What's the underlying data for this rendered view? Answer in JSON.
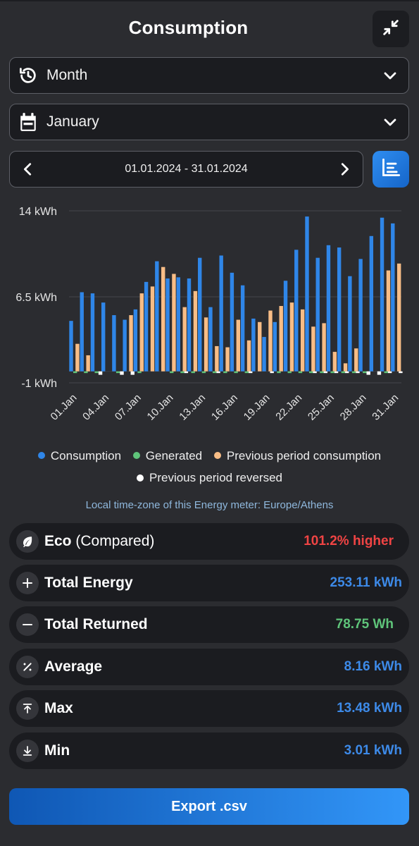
{
  "header": {
    "title": "Consumption"
  },
  "period_select": {
    "value": "Month"
  },
  "month_select": {
    "value": "January"
  },
  "date_range": {
    "text": "01.01.2024 - 31.01.2024"
  },
  "legend": {
    "consumption": "Consumption",
    "generated": "Generated",
    "previous": "Previous period consumption",
    "reversed": "Previous period reversed"
  },
  "timezone_note": "Local time-zone of this Energy meter: Europe/Athens",
  "stats": {
    "eco": {
      "label": "Eco",
      "sub": "(Compared)",
      "value": "101.2% higher",
      "color": "#f04444"
    },
    "total_energy": {
      "label": "Total Energy",
      "value": "253.11 kWh",
      "color": "#3d8ae8"
    },
    "total_returned": {
      "label": "Total Returned",
      "value": "78.75 Wh",
      "color": "#5fc47a"
    },
    "average": {
      "label": "Average",
      "value": "8.16 kWh",
      "color": "#3d8ae8"
    },
    "max": {
      "label": "Max",
      "value": "13.48 kWh",
      "color": "#3d8ae8"
    },
    "min": {
      "label": "Min",
      "value": "3.01 kWh",
      "color": "#3d8ae8"
    }
  },
  "export_label": "Export .csv",
  "colors": {
    "consumption": "#2f86e8",
    "generated": "#5fc47a",
    "previous": "#f8bd86",
    "reversed": "#ffffff"
  },
  "chart_data": {
    "type": "bar",
    "ylabel": "",
    "ylim": [
      -1,
      14
    ],
    "yticks": [
      "14 kWh",
      "6.5 kWh",
      "-1 kWh"
    ],
    "ytick_values": [
      14,
      6.5,
      -1
    ],
    "grid": true,
    "legend_position": "bottom",
    "categories": [
      "01.Jan",
      "02.Jan",
      "03.Jan",
      "04.Jan",
      "05.Jan",
      "06.Jan",
      "07.Jan",
      "08.Jan",
      "09.Jan",
      "10.Jan",
      "11.Jan",
      "12.Jan",
      "13.Jan",
      "14.Jan",
      "15.Jan",
      "16.Jan",
      "17.Jan",
      "18.Jan",
      "19.Jan",
      "20.Jan",
      "21.Jan",
      "22.Jan",
      "23.Jan",
      "24.Jan",
      "25.Jan",
      "26.Jan",
      "27.Jan",
      "28.Jan",
      "29.Jan",
      "30.Jan",
      "31.Jan"
    ],
    "tick_labels": [
      "01.Jan",
      "04.Jan",
      "07.Jan",
      "10.Jan",
      "13.Jan",
      "16.Jan",
      "19.Jan",
      "22.Jan",
      "25.Jan",
      "28.Jan",
      "31.Jan"
    ],
    "tick_indices": [
      0,
      3,
      6,
      9,
      12,
      15,
      18,
      21,
      24,
      27,
      30
    ],
    "series": [
      {
        "name": "Consumption",
        "values": [
          4.4,
          6.9,
          6.8,
          6.0,
          4.9,
          4.5,
          5.4,
          7.8,
          9.6,
          8.1,
          8.2,
          8.1,
          9.9,
          5.6,
          10.1,
          8.6,
          7.5,
          4.6,
          3.0,
          4.3,
          7.9,
          10.6,
          13.5,
          9.9,
          11.0,
          10.8,
          8.3,
          9.8,
          11.8,
          13.4,
          12.9
        ]
      },
      {
        "name": "Generated",
        "values": [
          -0.15,
          -0.15,
          -0.15,
          0,
          -0.15,
          0,
          -0.15,
          0,
          0,
          -0.15,
          -0.15,
          -0.15,
          -0.15,
          -0.15,
          -0.15,
          -0.15,
          -0.15,
          0,
          0,
          -0.15,
          -0.15,
          -0.15,
          -0.15,
          -0.15,
          -0.15,
          -0.15,
          -0.15,
          -0.15,
          0,
          -0.15,
          0
        ]
      },
      {
        "name": "Previous period consumption",
        "values": [
          2.4,
          1.4,
          0,
          0,
          0,
          4.9,
          6.8,
          7.4,
          9.1,
          8.5,
          5.6,
          7.0,
          4.7,
          2.2,
          2.1,
          4.5,
          2.7,
          4.3,
          5.3,
          5.7,
          6.0,
          5.4,
          3.9,
          4.2,
          1.7,
          0.7,
          2.0,
          0,
          0,
          8.8,
          9.4
        ]
      },
      {
        "name": "Previous period reversed",
        "values": [
          0,
          0,
          -0.3,
          0,
          -0.3,
          -0.3,
          0,
          0,
          0,
          0,
          -0.15,
          0,
          0,
          -0.15,
          0,
          0,
          -0.15,
          0,
          -0.15,
          0,
          0,
          0,
          -0.15,
          -0.15,
          -0.15,
          -0.15,
          -0.15,
          -0.3,
          -0.3,
          -0.15,
          -0.15
        ]
      }
    ]
  }
}
